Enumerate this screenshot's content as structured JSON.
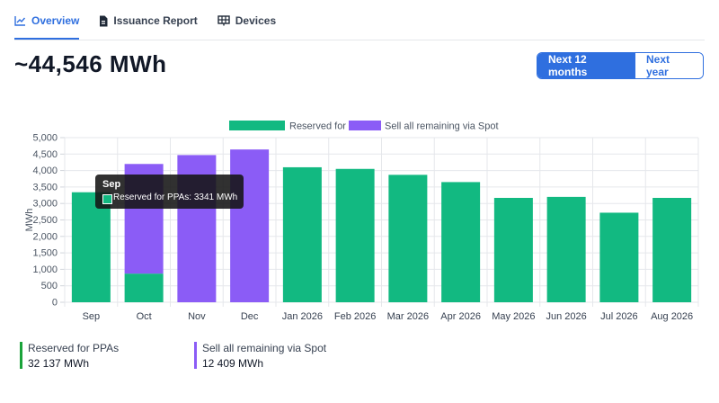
{
  "tabs": [
    {
      "label": "Overview",
      "icon": "chart-line-icon",
      "active": true
    },
    {
      "label": "Issuance Report",
      "icon": "document-icon",
      "active": false
    },
    {
      "label": "Devices",
      "icon": "devices-grid-icon",
      "active": false
    }
  ],
  "total": "~44,546 MWh",
  "range_buttons": {
    "next12": "Next 12 months",
    "next_year": "Next year"
  },
  "colors": {
    "accent": "#2f6fdf",
    "ppa": "#12b981",
    "spot": "#8b5cf6"
  },
  "tooltip": {
    "title": "Sep",
    "text": "Reserved for PPAs: 3341 MWh"
  },
  "summary": [
    {
      "label": "Reserved for PPAs",
      "value": "32 137 MWh"
    },
    {
      "label": "Sell all remaining via Spot",
      "value": "12 409 MWh"
    }
  ],
  "chart_data": {
    "type": "bar",
    "stacked": true,
    "ylabel": "MWh",
    "ylim": [
      0,
      5000
    ],
    "yticks": [
      "0",
      "500",
      "1,000",
      "1,500",
      "2,000",
      "2,500",
      "3,000",
      "3,500",
      "4,000",
      "4,500",
      "5,000"
    ],
    "categories": [
      "Sep",
      "Oct",
      "Nov",
      "Dec",
      "Jan 2026",
      "Feb 2026",
      "Mar 2026",
      "Apr 2026",
      "May 2026",
      "Jun 2026",
      "Jul 2026",
      "Aug 2026"
    ],
    "series": [
      {
        "name": "Reserved for PPAs",
        "values": [
          3341,
          870,
          0,
          0,
          4100,
          4050,
          3870,
          3650,
          3170,
          3200,
          2720,
          3170
        ]
      },
      {
        "name": "Sell all remaining via Spot",
        "values": [
          0,
          3330,
          4470,
          4640,
          0,
          0,
          0,
          0,
          0,
          0,
          0,
          0
        ]
      }
    ],
    "legend": "top-center",
    "grid": true
  }
}
